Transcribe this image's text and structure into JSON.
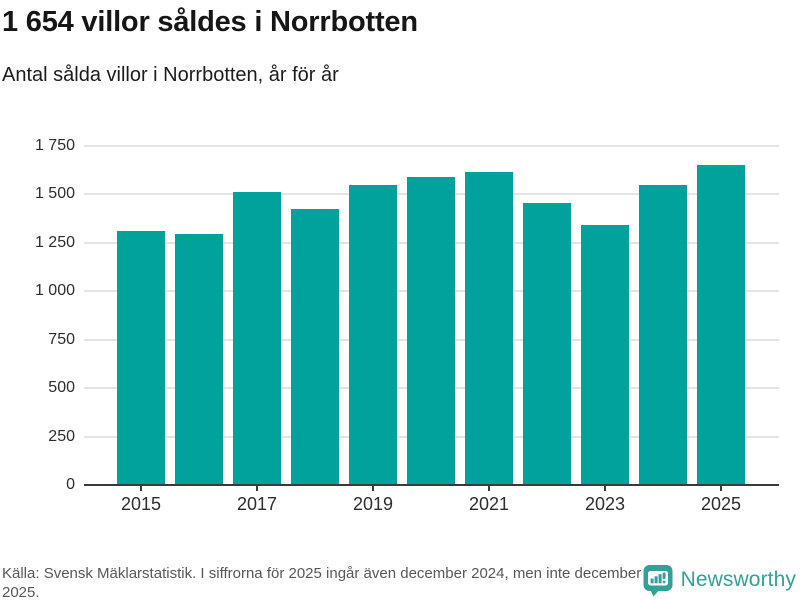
{
  "header": {
    "title": "1 654 villor såldes i Norrbotten",
    "subtitle": "Antal sålda villor i Norrbotten, år för år"
  },
  "chart_data": {
    "type": "bar",
    "title": "1 654 villor såldes i Norrbotten",
    "subtitle": "Antal sålda villor i Norrbotten, år för år",
    "categories": [
      "2015",
      "2016",
      "2017",
      "2018",
      "2019",
      "2020",
      "2021",
      "2022",
      "2023",
      "2024",
      "2025"
    ],
    "values": [
      1313,
      1296,
      1511,
      1424,
      1549,
      1588,
      1617,
      1455,
      1344,
      1551,
      1654
    ],
    "xlabel": "",
    "ylabel": "",
    "ylim": [
      0,
      1750
    ],
    "grid": "horizontal",
    "legend": "none",
    "bar_color": "#00A29B",
    "yticks": [
      {
        "value": 0,
        "label": "0"
      },
      {
        "value": 250,
        "label": "250"
      },
      {
        "value": 500,
        "label": "500"
      },
      {
        "value": 750,
        "label": "750"
      },
      {
        "value": 1000,
        "label": "1 000"
      },
      {
        "value": 1250,
        "label": "1 250"
      },
      {
        "value": 1500,
        "label": "1 500"
      },
      {
        "value": 1750,
        "label": "1 750"
      }
    ],
    "visible_xticks": [
      "2015",
      "2017",
      "2019",
      "2021",
      "2023",
      "2025"
    ]
  },
  "footer": {
    "source_text": "Källa: Svensk Mäklarstatistik. I siffrorna för 2025 ingår även december 2024, men inte december 2025.",
    "brand_name": "Newsworthy",
    "brand_color": "#33A199"
  },
  "colors": {
    "bar": "#00A29B",
    "gridline": "#e4e4e4",
    "axis": "#3b3b3b",
    "title": "#161616",
    "source": "#585858",
    "background": "#ffffff"
  }
}
